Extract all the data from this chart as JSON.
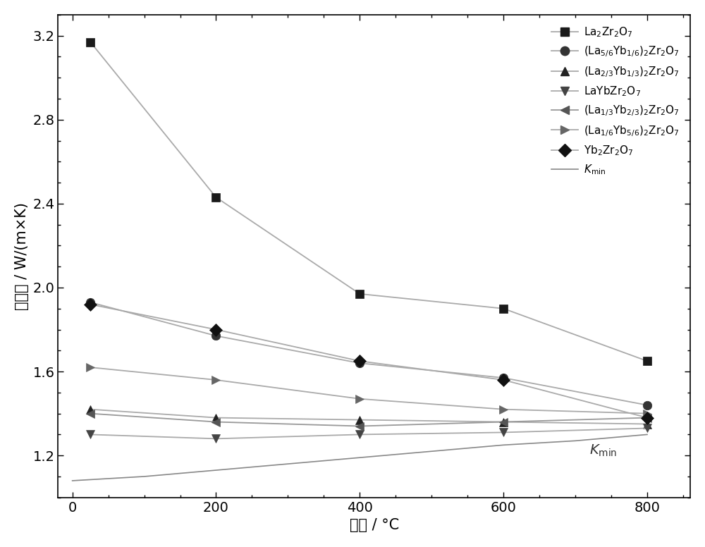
{
  "x": [
    25,
    200,
    400,
    600,
    800
  ],
  "series": [
    {
      "label": "La$_2$Zr$_2$O$_7$",
      "y": [
        3.17,
        2.43,
        1.97,
        1.9,
        1.65
      ],
      "marker": "s",
      "marker_color": "#1a1a1a",
      "line_color": "#aaaaaa"
    },
    {
      "label": "(La$_{5/6}$Yb$_{1/6}$)$_2$Zr$_2$O$_7$",
      "y": [
        1.93,
        1.77,
        1.64,
        1.57,
        1.44
      ],
      "marker": "o",
      "marker_color": "#333333",
      "line_color": "#aaaaaa"
    },
    {
      "label": "(La$_{2/3}$Yb$_{1/3}$)$_2$Zr$_2$O$_7$",
      "y": [
        1.42,
        1.38,
        1.37,
        1.36,
        1.35
      ],
      "marker": "^",
      "marker_color": "#222222",
      "line_color": "#aaaaaa"
    },
    {
      "label": "LaYbZr$_2$O$_7$",
      "y": [
        1.3,
        1.28,
        1.3,
        1.31,
        1.33
      ],
      "marker": "v",
      "marker_color": "#444444",
      "line_color": "#aaaaaa"
    },
    {
      "label": "(La$_{1/3}$Yb$_{2/3}$)$_2$Zr$_2$O$_7$",
      "y": [
        1.4,
        1.36,
        1.34,
        1.36,
        1.38
      ],
      "marker": "<",
      "marker_color": "#555555",
      "line_color": "#999999"
    },
    {
      "label": "(La$_{1/6}$Yb$_{5/6}$)$_2$Zr$_2$O$_7$",
      "y": [
        1.62,
        1.56,
        1.47,
        1.42,
        1.4
      ],
      "marker": ">",
      "marker_color": "#666666",
      "line_color": "#aaaaaa"
    },
    {
      "label": "Yb$_2$Zr$_2$O$_7$",
      "y": [
        1.92,
        1.8,
        1.65,
        1.56,
        1.38
      ],
      "marker": "D",
      "marker_color": "#111111",
      "line_color": "#aaaaaa"
    }
  ],
  "kmin_x": [
    0,
    100,
    200,
    300,
    400,
    500,
    600,
    700,
    800
  ],
  "kmin_y": [
    1.08,
    1.1,
    1.13,
    1.16,
    1.19,
    1.22,
    1.25,
    1.27,
    1.3
  ],
  "kmin_color": "#888888",
  "xlabel": "温度 / °C",
  "ylabel": "热导率 / W/(m×K)",
  "xlim": [
    -20,
    860
  ],
  "ylim": [
    1.0,
    3.3
  ],
  "yticks": [
    1.2,
    1.6,
    2.0,
    2.4,
    2.8,
    3.2
  ],
  "xticks": [
    0,
    200,
    400,
    600,
    800
  ],
  "markersize": 9,
  "linewidth": 1.3,
  "background_color": "#ffffff"
}
